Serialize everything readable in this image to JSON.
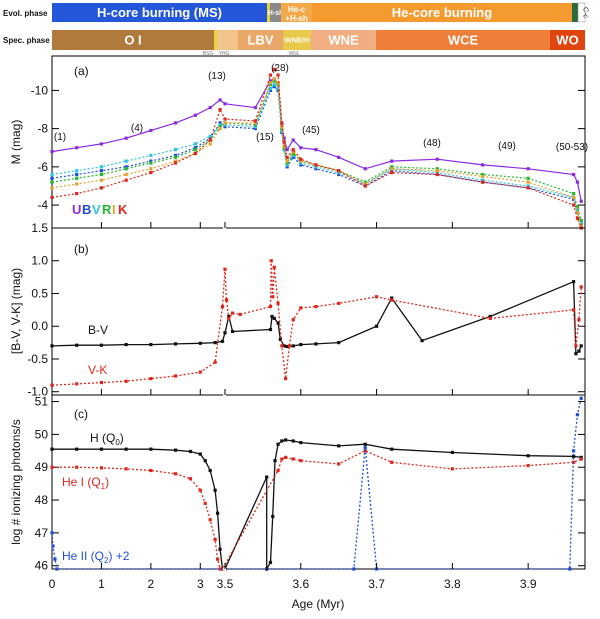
{
  "figure": {
    "xlabel": "Age (Myr)",
    "x_ticks": [
      "0",
      "1",
      "2",
      "3",
      "3.5",
      "3.6",
      "3.7",
      "3.8",
      "3.9"
    ]
  },
  "evol_phase": {
    "label": "Evol. phase",
    "segments": [
      {
        "label": "H-core burning (MS)",
        "color": "#2356d8",
        "text_color": "#ffffff"
      },
      {
        "label": "",
        "color": "#e7d23a"
      },
      {
        "label": "H-sh",
        "color": "#8a8a8a",
        "text_color": "#ffffff"
      },
      {
        "label": "He-c +H-sh",
        "color": "#f3a84a",
        "text_color": "#ffffff"
      },
      {
        "label": "He-core burning",
        "color": "#f59a2e",
        "text_color": "#ffffff"
      },
      {
        "label": "",
        "color": "#2e6b3a"
      },
      {
        "label": "C-c",
        "color": "#ffffff",
        "text_color": "#333333"
      }
    ]
  },
  "spec_phase": {
    "label": "Spec. phase",
    "segments": [
      {
        "label": "O I",
        "color": "#b07a3c",
        "text_color": "#ffffff"
      },
      {
        "label": "",
        "color": "#e7d23a"
      },
      {
        "label": "",
        "color": "#f2c58a"
      },
      {
        "label": "LBV",
        "color": "#e9a867",
        "text_color": "#ffffff"
      },
      {
        "label": "WNE/H",
        "color": "#e8c94a",
        "text_color": "#ffffff"
      },
      {
        "label": "WNE",
        "color": "#f1ae83",
        "text_color": "#ffffff"
      },
      {
        "label": "WCE",
        "color": "#ee7f3a",
        "text_color": "#ffffff"
      },
      {
        "label": "WO",
        "color": "#e0450f",
        "text_color": "#ffffff"
      }
    ],
    "sublabels": [
      "BSG",
      "YHG",
      "WNL"
    ]
  },
  "panel_a": {
    "tag": "(a)",
    "ylabel": "M (mag)",
    "y_ticks": [
      "-10",
      "-8",
      "-6",
      "-4"
    ],
    "bands_legend": [
      {
        "letter": "U",
        "color": "#8a2be2"
      },
      {
        "letter": "B",
        "color": "#1f4fd6"
      },
      {
        "letter": "V",
        "color": "#2ec4e8"
      },
      {
        "letter": "R",
        "color": "#22b82e"
      },
      {
        "letter": "I",
        "color": "#e3a22e"
      },
      {
        "letter": "K",
        "color": "#e0261c"
      }
    ],
    "annotations": [
      "(1)",
      "(4)",
      "(13)",
      "(28)",
      "(15)",
      "(45)",
      "(48)",
      "(49)",
      "(50-53)"
    ]
  },
  "panel_b": {
    "tag": "(b)",
    "ylabel": "[B-V, V-K] (mag)",
    "y_ticks": [
      "-1.0",
      "-0.5",
      "0.0",
      "0.5",
      "1.0",
      "1.5"
    ],
    "labels": {
      "bv": "B-V",
      "vk": "V-K"
    }
  },
  "panel_c": {
    "tag": "(c)",
    "ylabel": "log # ionizing photons/s",
    "y_ticks": [
      "46",
      "47",
      "48",
      "49",
      "50",
      "51"
    ],
    "labels": {
      "h": "H (Q",
      "h_sub": "0",
      "hei": "He I (Q",
      "hei_sub": "1",
      "heii": "He II (Q",
      "heii_sub": "2",
      "heii_suffix": ") +2"
    }
  },
  "chart_data": [
    {
      "type": "line",
      "panel": "a",
      "ylabel": "M (mag)",
      "ylim": [
        -2.8,
        -11.8
      ],
      "x_axis": "Age (Myr), broken at 3.5",
      "series": [
        {
          "name": "U",
          "color": "#8a2be2",
          "x": [
            0.0,
            0.5,
            1.0,
            1.5,
            2.0,
            2.5,
            2.9,
            3.2,
            3.4,
            3.5,
            3.54,
            3.56,
            3.565,
            3.57,
            3.575,
            3.578,
            3.582,
            3.59,
            3.6,
            3.62,
            3.65,
            3.685,
            3.72,
            3.78,
            3.84,
            3.9,
            3.96,
            3.965,
            3.97
          ],
          "y": [
            -6.8,
            -7.0,
            -7.2,
            -7.5,
            -7.9,
            -8.3,
            -8.7,
            -9.1,
            -9.5,
            -9.3,
            -9.1,
            -10.5,
            -10.6,
            -10.4,
            -8.2,
            -7.5,
            -6.9,
            -7.4,
            -7.0,
            -6.9,
            -6.5,
            -5.9,
            -6.3,
            -6.4,
            -6.1,
            -5.9,
            -5.6,
            -5.2,
            -4.2
          ]
        },
        {
          "name": "B",
          "color": "#1f4fd6",
          "x": [
            0.0,
            0.5,
            1.0,
            1.5,
            2.0,
            2.5,
            2.9,
            3.2,
            3.4,
            3.5,
            3.54,
            3.56,
            3.565,
            3.57,
            3.575,
            3.578,
            3.582,
            3.59,
            3.6,
            3.62,
            3.65,
            3.685,
            3.72,
            3.78,
            3.84,
            3.9,
            3.96,
            3.965,
            3.97
          ],
          "y": [
            -5.4,
            -5.6,
            -5.8,
            -6.0,
            -6.3,
            -6.6,
            -7.0,
            -7.5,
            -8.3,
            -8.1,
            -8.0,
            -10.0,
            -10.2,
            -10.0,
            -7.8,
            -6.9,
            -6.0,
            -6.5,
            -6.1,
            -5.9,
            -5.6,
            -5.0,
            -5.8,
            -5.6,
            -5.2,
            -4.9,
            -4.3,
            -3.6,
            -3.0
          ]
        },
        {
          "name": "V",
          "color": "#2ec4e8",
          "x": [
            0.0,
            0.5,
            1.0,
            1.5,
            2.0,
            2.5,
            2.9,
            3.2,
            3.4,
            3.5,
            3.54,
            3.56,
            3.565,
            3.57,
            3.575,
            3.578,
            3.582,
            3.59,
            3.6,
            3.62,
            3.65,
            3.685,
            3.72,
            3.78,
            3.84,
            3.9,
            3.96,
            3.965,
            3.97
          ],
          "y": [
            -5.6,
            -5.8,
            -6.0,
            -6.3,
            -6.6,
            -6.9,
            -7.2,
            -7.6,
            -8.2,
            -8.2,
            -8.1,
            -10.1,
            -10.3,
            -10.1,
            -7.9,
            -6.9,
            -6.1,
            -6.6,
            -6.2,
            -6.0,
            -5.7,
            -5.1,
            -5.9,
            -5.7,
            -5.3,
            -5.0,
            -4.4,
            -3.7,
            -3.1
          ]
        },
        {
          "name": "R",
          "color": "#22b82e",
          "x": [
            0.0,
            0.5,
            1.0,
            1.5,
            2.0,
            2.5,
            2.9,
            3.2,
            3.4,
            3.5,
            3.54,
            3.56,
            3.565,
            3.57,
            3.575,
            3.578,
            3.582,
            3.59,
            3.6,
            3.62,
            3.65,
            3.685,
            3.72,
            3.78,
            3.84,
            3.9,
            3.96,
            3.965,
            3.97
          ],
          "y": [
            -5.2,
            -5.4,
            -5.6,
            -5.9,
            -6.2,
            -6.5,
            -6.9,
            -7.4,
            -8.1,
            -8.3,
            -8.2,
            -10.3,
            -10.5,
            -10.3,
            -8.0,
            -7.0,
            -6.2,
            -6.7,
            -6.3,
            -6.1,
            -5.8,
            -5.2,
            -6.0,
            -5.9,
            -5.6,
            -5.4,
            -4.6,
            -3.9,
            -3.2
          ]
        },
        {
          "name": "I",
          "color": "#e3a22e",
          "x": [
            0.0,
            0.5,
            1.0,
            1.5,
            2.0,
            2.5,
            2.9,
            3.2,
            3.4,
            3.5,
            3.54,
            3.56,
            3.565,
            3.57,
            3.575,
            3.578,
            3.582,
            3.59,
            3.6,
            3.62,
            3.65,
            3.685,
            3.72,
            3.78,
            3.84,
            3.9,
            3.96,
            3.965,
            3.97
          ],
          "y": [
            -4.9,
            -5.1,
            -5.3,
            -5.6,
            -5.9,
            -6.3,
            -6.7,
            -7.2,
            -8.0,
            -8.3,
            -8.3,
            -10.4,
            -10.6,
            -10.4,
            -8.1,
            -7.1,
            -6.3,
            -6.8,
            -6.3,
            -6.1,
            -5.8,
            -5.1,
            -5.9,
            -5.8,
            -5.5,
            -5.2,
            -4.4,
            -3.6,
            -2.9
          ]
        },
        {
          "name": "K",
          "color": "#e0261c",
          "x": [
            0.0,
            0.5,
            1.0,
            1.5,
            2.0,
            2.5,
            2.9,
            3.2,
            3.4,
            3.5,
            3.54,
            3.56,
            3.565,
            3.57,
            3.575,
            3.578,
            3.582,
            3.59,
            3.6,
            3.62,
            3.65,
            3.685,
            3.72,
            3.78,
            3.84,
            3.9,
            3.96,
            3.965,
            3.97
          ],
          "y": [
            -4.4,
            -4.6,
            -4.9,
            -5.3,
            -5.7,
            -6.2,
            -6.7,
            -7.4,
            -9.0,
            -8.5,
            -8.4,
            -10.8,
            -11.1,
            -10.8,
            -8.3,
            -7.3,
            -6.5,
            -6.9,
            -6.4,
            -6.1,
            -5.8,
            -5.0,
            -5.7,
            -5.6,
            -5.2,
            -4.9,
            -4.0,
            -3.3,
            -2.8
          ]
        }
      ]
    },
    {
      "type": "line",
      "panel": "b",
      "ylabel": "[B-V, V-K] (mag)",
      "ylim": [
        -1.05,
        1.5
      ],
      "series": [
        {
          "name": "B-V",
          "color": "#111111",
          "x": [
            0.0,
            0.5,
            1.0,
            1.5,
            2.0,
            2.5,
            3.0,
            3.3,
            3.45,
            3.5,
            3.505,
            3.51,
            3.56,
            3.562,
            3.565,
            3.57,
            3.573,
            3.578,
            3.582,
            3.59,
            3.6,
            3.62,
            3.65,
            3.7,
            3.72,
            3.76,
            3.85,
            3.96,
            3.963,
            3.967,
            3.97
          ],
          "y": [
            -0.3,
            -0.29,
            -0.29,
            -0.28,
            -0.28,
            -0.27,
            -0.26,
            -0.25,
            -0.23,
            -0.1,
            0.15,
            -0.08,
            -0.05,
            0.15,
            0.12,
            0.05,
            -0.2,
            -0.3,
            -0.31,
            -0.3,
            -0.28,
            -0.27,
            -0.25,
            0.0,
            0.43,
            -0.22,
            0.15,
            0.68,
            -0.42,
            -0.38,
            -0.3
          ]
        },
        {
          "name": "V-K",
          "color": "#e0261c",
          "x": [
            0.0,
            0.5,
            1.0,
            1.5,
            2.0,
            2.5,
            3.0,
            3.3,
            3.45,
            3.5,
            3.502,
            3.505,
            3.51,
            3.52,
            3.56,
            3.561,
            3.563,
            3.565,
            3.57,
            3.575,
            3.58,
            3.585,
            3.59,
            3.6,
            3.62,
            3.65,
            3.7,
            3.72,
            3.85,
            3.96,
            3.963,
            3.967,
            3.97
          ],
          "y": [
            -0.9,
            -0.88,
            -0.86,
            -0.84,
            -0.8,
            -0.76,
            -0.7,
            -0.55,
            0.3,
            0.87,
            0.4,
            0.12,
            0.2,
            0.18,
            0.3,
            1.0,
            0.45,
            0.9,
            0.35,
            -0.3,
            -0.8,
            -0.3,
            0.1,
            0.28,
            0.3,
            0.35,
            0.45,
            0.4,
            0.12,
            0.25,
            -0.3,
            0.1,
            0.6
          ]
        }
      ]
    },
    {
      "type": "line",
      "panel": "c",
      "ylabel": "log # ionizing photons/s",
      "ylim": [
        45.9,
        51.2
      ],
      "series": [
        {
          "name": "H (Q0)",
          "color": "#111111",
          "x": [
            0.0,
            0.5,
            1.0,
            1.5,
            2.0,
            2.5,
            2.8,
            3.0,
            3.1,
            3.2,
            3.3,
            3.35,
            3.4,
            3.45,
            3.5,
            3.555,
            3.555,
            3.56,
            3.563,
            3.566,
            3.57,
            3.575,
            3.58,
            3.59,
            3.6,
            3.65,
            3.685,
            3.72,
            3.8,
            3.9,
            3.96,
            3.97
          ],
          "y": [
            49.55,
            49.55,
            49.55,
            49.55,
            49.55,
            49.52,
            49.48,
            49.4,
            49.2,
            48.9,
            48.3,
            47.6,
            46.5,
            45.9,
            45.9,
            48.7,
            45.9,
            46.1,
            47.5,
            49.2,
            49.7,
            49.8,
            49.83,
            49.8,
            49.75,
            49.65,
            49.7,
            49.55,
            49.45,
            49.35,
            49.33,
            49.3
          ]
        },
        {
          "name": "He I (Q1)",
          "color": "#e0261c",
          "x": [
            0.0,
            0.5,
            1.0,
            1.5,
            2.0,
            2.5,
            2.8,
            3.0,
            3.1,
            3.2,
            3.3,
            3.35,
            3.4,
            3.45,
            3.57,
            3.575,
            3.58,
            3.59,
            3.6,
            3.65,
            3.685,
            3.72,
            3.8,
            3.9,
            3.96,
            3.97
          ],
          "y": [
            49.0,
            49.0,
            48.98,
            48.95,
            48.9,
            48.8,
            48.65,
            48.3,
            47.9,
            47.4,
            46.8,
            46.2,
            45.9,
            45.9,
            48.9,
            49.25,
            49.3,
            49.25,
            49.2,
            49.1,
            49.5,
            49.15,
            48.95,
            49.05,
            49.15,
            49.25
          ]
        },
        {
          "name": "He II (Q2) +2",
          "color": "#1f4fd6",
          "x": [
            0.0,
            0.02,
            0.06,
            0.1,
            3.67,
            3.685,
            3.7,
            3.955,
            3.96,
            3.965,
            3.97
          ],
          "y": [
            47.0,
            46.6,
            46.2,
            45.9,
            45.9,
            49.6,
            45.9,
            45.9,
            49.5,
            50.6,
            51.1
          ]
        }
      ]
    }
  ]
}
